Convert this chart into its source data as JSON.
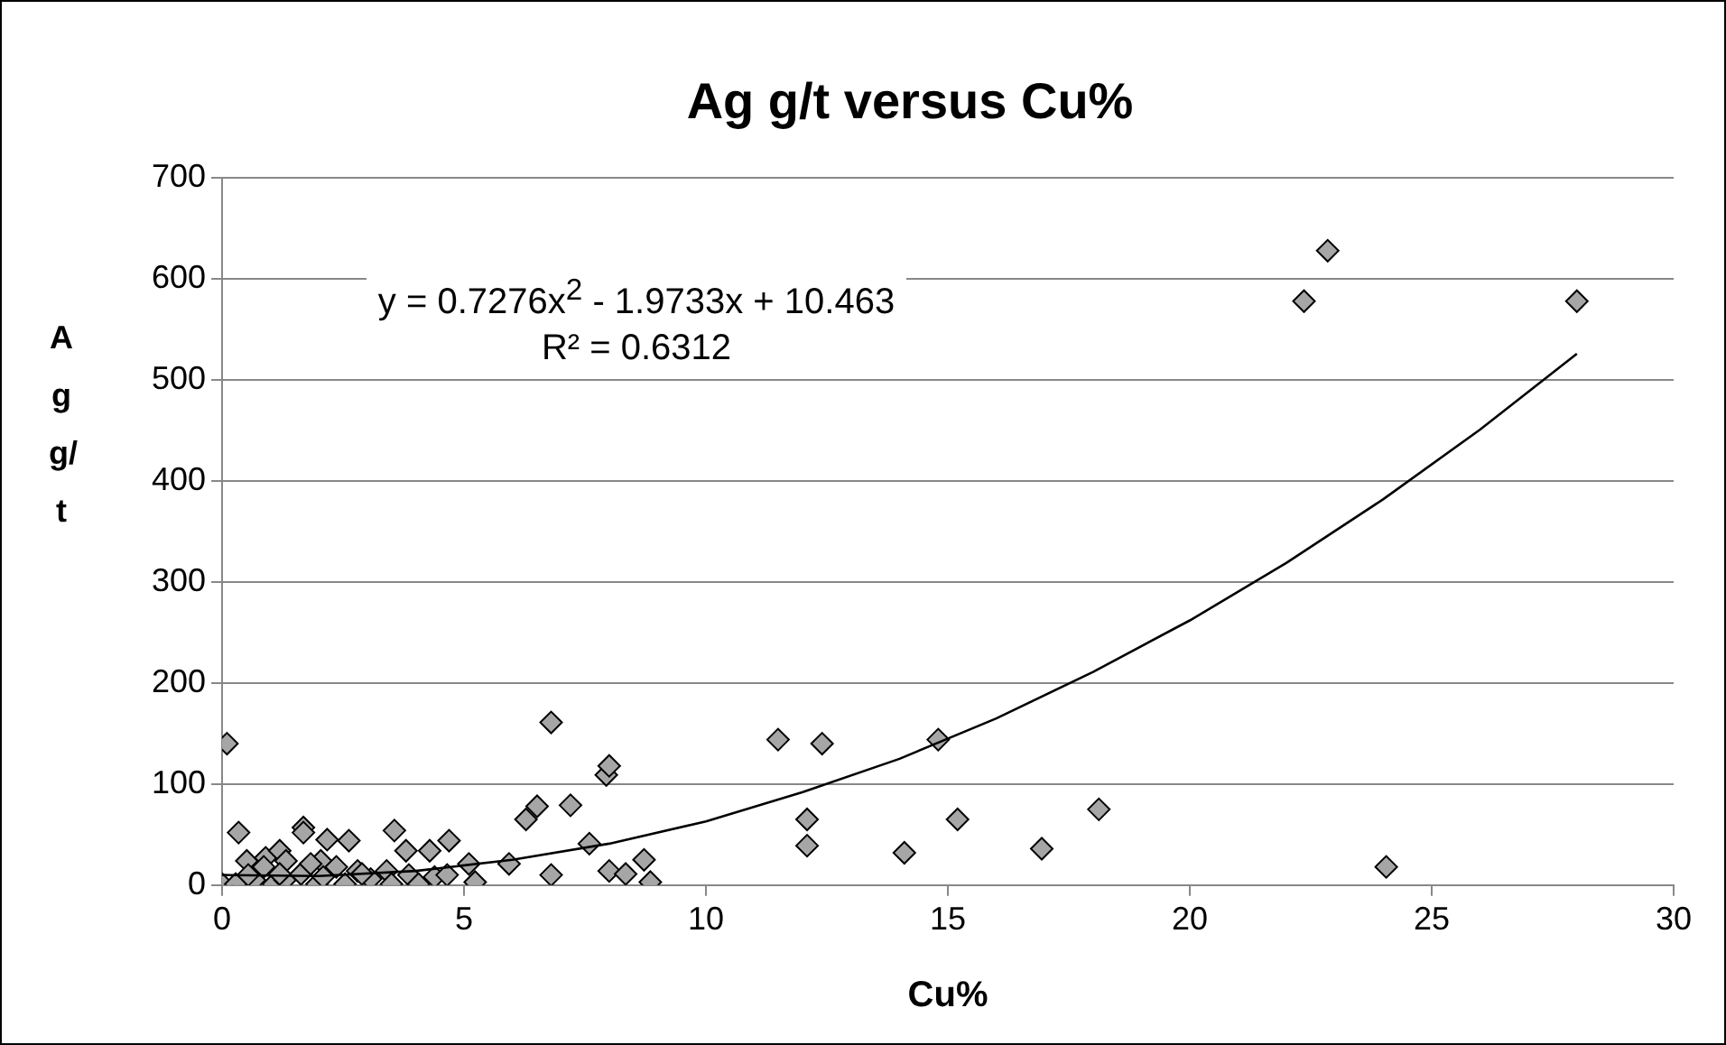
{
  "chart_data": {
    "type": "scatter",
    "title": "Ag g/t versus Cu%",
    "xlabel": "Cu%",
    "ylabel": "Ag g/t",
    "xlim": [
      0,
      30
    ],
    "xticks": [
      0,
      5,
      10,
      15,
      20,
      25,
      30
    ],
    "ylim": [
      0,
      700
    ],
    "yticks": [
      0,
      100,
      200,
      300,
      400,
      500,
      600,
      700
    ],
    "grid": "y",
    "legend": false,
    "marker": "diamond",
    "annotations": [
      "y = 0.7276x$^{2}$ - 1.9733x + 10.463",
      "R² = 0.6312"
    ],
    "series": [
      {
        "color": "#a6a6a6",
        "x": [
          22.85,
          22.36,
          28,
          24.06,
          11.49,
          12.4,
          12.09,
          12.09,
          14.1,
          14.8,
          15.2,
          16.94,
          18.12,
          0.1,
          0.34,
          0.51,
          0.9,
          1.19,
          1.32,
          1.68,
          1.68,
          2.04,
          2.17,
          2.62,
          3.56,
          3.8,
          4.29,
          4.69,
          5.1,
          5.23,
          5.93,
          6.8,
          6.51,
          6.28,
          7.2,
          7.59,
          7.94,
          8,
          6.8,
          8,
          8.34,
          8.72,
          8.85,
          0,
          0.28,
          0.67,
          1.06,
          1.3,
          1.63,
          1.96,
          2.09,
          2.54,
          2.8,
          3.07,
          3.4,
          3.5,
          3.86,
          4.06,
          4.39,
          4.65,
          1.19,
          0.54,
          0.86,
          1.83,
          2.36,
          2.89
        ],
        "values": [
          628,
          578,
          578,
          18,
          144,
          140,
          65,
          39,
          32,
          144,
          65,
          36,
          75,
          140,
          52,
          24,
          27,
          34,
          24,
          57,
          52,
          24,
          45,
          44,
          54,
          34,
          34,
          44,
          21,
          3,
          21,
          161,
          78,
          65,
          79,
          41,
          109,
          118,
          10,
          14,
          11,
          25,
          3,
          1,
          1,
          5,
          1,
          5,
          11,
          1,
          8,
          1,
          14,
          6,
          14,
          1,
          10,
          1,
          8,
          10,
          11,
          10,
          18,
          21,
          18,
          11
        ]
      },
      {
        "type": "line",
        "color": "#000000",
        "marker": "none",
        "x": [
          0,
          2,
          4,
          6,
          8,
          10,
          12,
          14,
          16,
          18,
          20,
          22,
          24,
          26,
          28
        ],
        "values": [
          10,
          9,
          14,
          25,
          41,
          63,
          92,
          125,
          165,
          211,
          262,
          319,
          382,
          451,
          526
        ]
      }
    ]
  }
}
